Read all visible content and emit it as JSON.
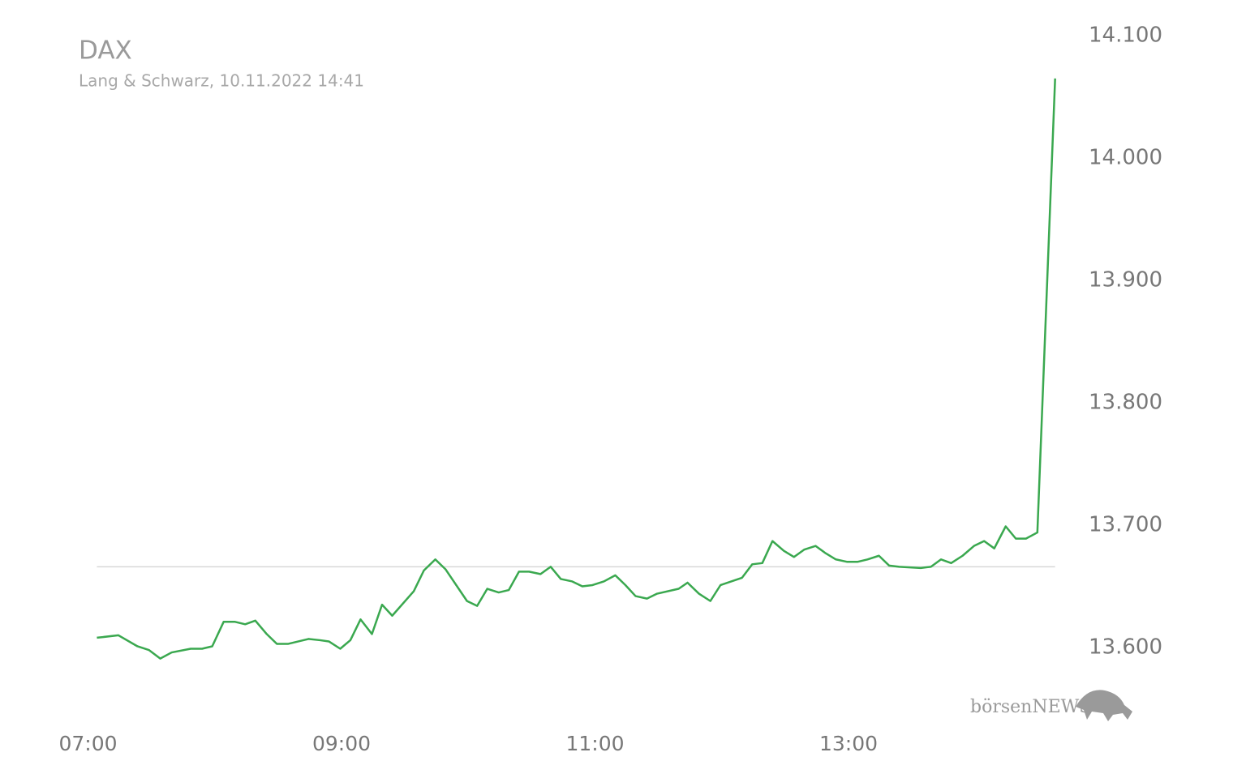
{
  "chart_data": {
    "type": "line",
    "title": "DAX",
    "subtitle": "Lang & Schwarz, 10.11.2022 14:41",
    "watermark": "börsenNEWS",
    "color": "#3aa84f",
    "reference_line": 13666,
    "x": [
      7.07,
      7.24,
      7.39,
      7.48,
      7.57,
      7.66,
      7.81,
      7.9,
      7.98,
      8.07,
      8.16,
      8.24,
      8.32,
      8.41,
      8.49,
      8.58,
      8.74,
      8.83,
      8.9,
      8.99,
      9.07,
      9.15,
      9.24,
      9.32,
      9.4,
      9.57,
      9.65,
      9.74,
      9.82,
      9.99,
      10.07,
      10.15,
      10.24,
      10.32,
      10.4,
      10.48,
      10.57,
      10.65,
      10.73,
      10.82,
      10.9,
      10.98,
      11.07,
      11.16,
      11.24,
      11.32,
      11.41,
      11.49,
      11.66,
      11.73,
      11.82,
      11.91,
      11.99,
      12.16,
      12.24,
      12.32,
      12.4,
      12.49,
      12.57,
      12.65,
      12.74,
      12.82,
      12.9,
      12.99,
      13.07,
      13.15,
      13.24,
      13.32,
      13.4,
      13.57,
      13.65,
      13.73,
      13.81,
      13.9,
      13.99,
      14.07,
      14.15,
      14.24,
      14.32,
      14.4,
      14.49,
      14.63
    ],
    "values": [
      13608,
      13610,
      13601,
      13598,
      13591,
      13596,
      13599,
      13599,
      13601,
      13621,
      13621,
      13619,
      13622,
      13611,
      13603,
      13603,
      13607,
      13606,
      13605,
      13599,
      13606,
      13623,
      13611,
      13635,
      13626,
      13646,
      13663,
      13672,
      13664,
      13638,
      13634,
      13648,
      13645,
      13647,
      13662,
      13662,
      13660,
      13666,
      13656,
      13654,
      13650,
      13651,
      13654,
      13659,
      13651,
      13642,
      13640,
      13644,
      13648,
      13653,
      13644,
      13638,
      13651,
      13657,
      13668,
      13669,
      13687,
      13679,
      13674,
      13680,
      13683,
      13677,
      13672,
      13670,
      13670,
      13672,
      13675,
      13667,
      13666,
      13665,
      13666,
      13672,
      13669,
      13675,
      13683,
      13687,
      13681,
      13699,
      13689,
      13689,
      13694,
      14065
    ],
    "xlim": [
      7,
      14.7
    ],
    "xticks": [
      {
        "value": 7,
        "label": "07:00"
      },
      {
        "value": 9,
        "label": "09:00"
      },
      {
        "value": 11,
        "label": "11:00"
      },
      {
        "value": 13,
        "label": "13:00"
      }
    ],
    "ylim": [
      13550,
      14100
    ],
    "yticks": [
      {
        "value": 13600,
        "label": "13.600"
      },
      {
        "value": 13700,
        "label": "13.700"
      },
      {
        "value": 13800,
        "label": "13.800"
      },
      {
        "value": 13900,
        "label": "13.900"
      },
      {
        "value": 14000,
        "label": "14.000"
      },
      {
        "value": 14100,
        "label": "14.100"
      }
    ],
    "grid": false
  }
}
